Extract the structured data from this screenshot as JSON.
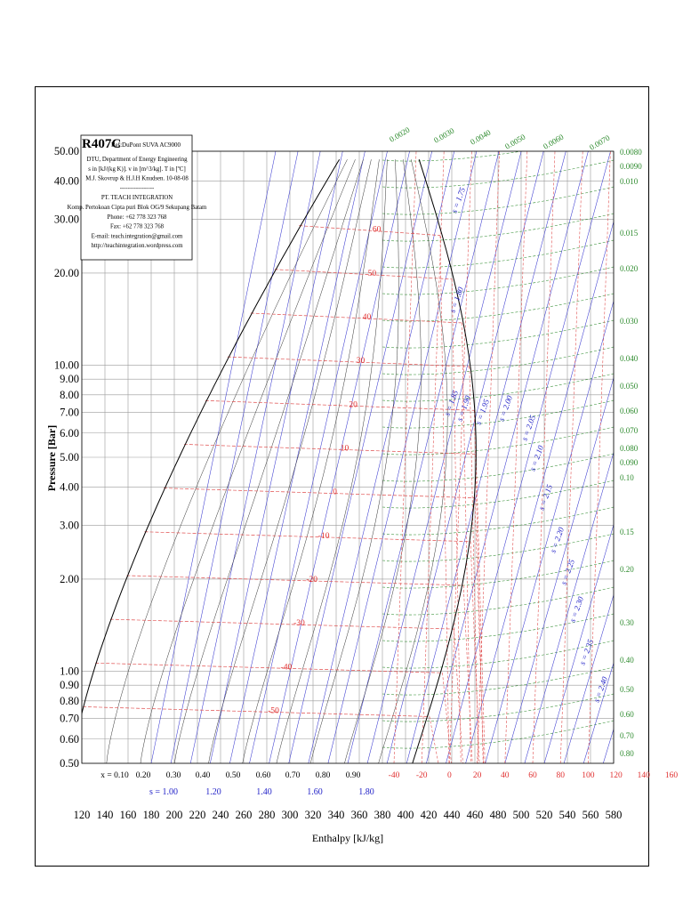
{
  "chart_data": {
    "type": "line",
    "title": "R407C",
    "ref": "Ref:DuPont SUVA AC9000",
    "info_box": [
      "DTU, Department of Energy Engineering",
      "s in [kJ/(kg K)]. v in [m^3/kg]. T in [ºC]",
      "M.J. Skovrup & H.J.H Knudsen. 10-08-08",
      "-----------------",
      "PT. TEACH INTEGRATION",
      "Komp. Pertokoan Cipta puri Blok OG/9 Sekupang Batam",
      "Phone: +62 778 323 768",
      "Fax: +62 778 323 768",
      "E-mail: teach.integration@gmail.com",
      "http://teachintegration.wordpress.com"
    ],
    "xlabel": "Enthalpy [kJ/kg]",
    "ylabel": "Pressure [Bar]",
    "xlim": [
      120,
      580
    ],
    "ylim": [
      0.5,
      50
    ],
    "yscale": "log",
    "x_ticks": [
      "120",
      "140",
      "160",
      "180",
      "200",
      "220",
      "240",
      "260",
      "280",
      "300",
      "320",
      "340",
      "360",
      "380",
      "400",
      "420",
      "440",
      "460",
      "480",
      "500",
      "520",
      "540",
      "560",
      "580"
    ],
    "y_ticks": [
      "0.50",
      "0.60",
      "0.70",
      "0.80",
      "0.90",
      "1.00",
      "2.00",
      "3.00",
      "4.00",
      "5.00",
      "6.00",
      "7.00",
      "8.00",
      "9.00",
      "10.00",
      "20.00",
      "30.00",
      "40.00",
      "50.00"
    ],
    "quality_labels": [
      "x = 0.10",
      "0.20",
      "0.30",
      "0.40",
      "0.50",
      "0.60",
      "0.70",
      "0.80",
      "0.90"
    ],
    "entropy_bottom_labels": [
      "s = 1.00",
      "1.20",
      "1.40",
      "1.60",
      "1.80"
    ],
    "temperature_bottom_labels": [
      "-40",
      "-20",
      "0",
      "20",
      "40",
      "60",
      "80",
      "100",
      "120",
      "140",
      "160"
    ],
    "isotherm_labels": [
      "60",
      "50",
      "40",
      "30",
      "20",
      "10",
      "0",
      "-10",
      "-20",
      "-30",
      "-40",
      "-50"
    ],
    "entropy_labels": [
      "s = 1.75",
      "s = 1.80",
      "s = 1.85",
      "s = 1.90",
      "s = 1.95",
      "s = 2.00",
      "s = 2.05",
      "s = 2.10",
      "s = 2.15",
      "s = 2.20",
      "s = 2.25",
      "s = 2.30",
      "s = 2.35",
      "s = 2.40"
    ],
    "volume_top_labels": [
      "0.0020",
      "0.0030",
      "0.0040",
      "0.0050",
      "0.0060",
      "0.0070"
    ],
    "volume_right_labels": [
      "0.0080",
      "0.0090",
      "0.010",
      "0.015",
      "0.020",
      "0.030",
      "0.040",
      "0.050",
      "0.060",
      "0.070",
      "0.080",
      "0.090",
      "0.10",
      "0.15",
      "0.20",
      "0.30",
      "0.40",
      "0.50",
      "0.60",
      "0.70",
      "0.80"
    ],
    "colors": {
      "grid": "#9a9a9a",
      "saturation": "#000000",
      "isotherm": "#e05050",
      "isentrope": "#3a3ad0",
      "isochore": "#2e8b2e",
      "quality": "#333333"
    }
  }
}
